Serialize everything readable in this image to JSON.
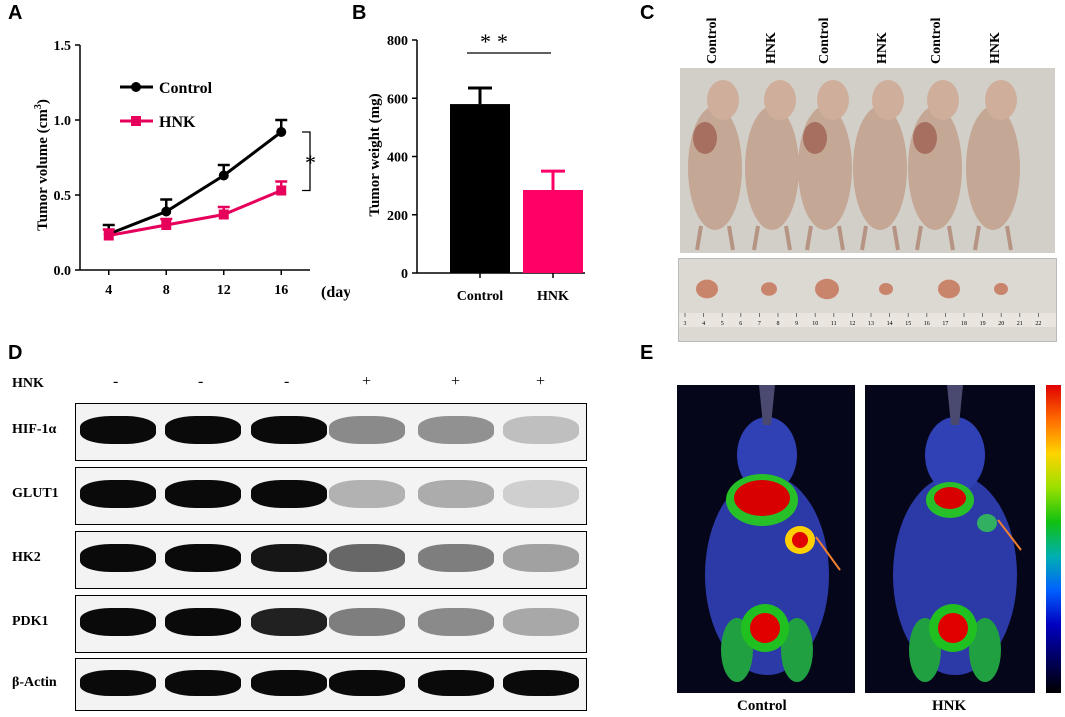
{
  "panels": {
    "A": "A",
    "B": "B",
    "C": "C",
    "D": "D",
    "E": "E"
  },
  "panelA": {
    "ylabel_main": "Tumor volume (cm",
    "ylabel_sup": "3",
    "ylabel_end": ")",
    "xunit": "(day)",
    "sig": "*",
    "xticks": [
      "4",
      "8",
      "12",
      "16"
    ],
    "yticks": [
      "0.0",
      "0.5",
      "1.0",
      "1.5"
    ]
  },
  "panelB": {
    "ylabel": "Tumor weight (mg)",
    "sig": "**",
    "yticks": [
      "0",
      "200",
      "400",
      "600",
      "800"
    ]
  },
  "panelC": {
    "labels": [
      "Control",
      "HNK",
      "Control",
      "HNK",
      "Control",
      "HNK"
    ],
    "ruler_numbers": [
      "3",
      "4",
      "5",
      "6",
      "7",
      "8",
      "9",
      "10",
      "11",
      "12",
      "13",
      "14",
      "15",
      "16",
      "17",
      "18",
      "19",
      "20",
      "21",
      "22"
    ]
  },
  "panelD": {
    "treatment_label": "HNK",
    "lane_signs": [
      "-",
      "-",
      "-",
      "+",
      "+",
      "+"
    ],
    "proteins": [
      "HIF-1α",
      "GLUT1",
      "HK2",
      "PDK1",
      "β-Actin"
    ]
  },
  "panelE": {
    "labels": [
      "Control",
      "HNK"
    ]
  },
  "chart_data": [
    {
      "type": "line",
      "x": [
        4,
        8,
        12,
        16
      ],
      "series": [
        {
          "name": "Control",
          "values": [
            0.24,
            0.39,
            0.63,
            0.92
          ],
          "errors": [
            0.06,
            0.08,
            0.07,
            0.08
          ],
          "color": "#000000"
        },
        {
          "name": "HNK",
          "values": [
            0.23,
            0.3,
            0.37,
            0.53
          ],
          "errors": [
            0.04,
            0.04,
            0.05,
            0.06
          ],
          "color": "#e6005c"
        }
      ],
      "xlabel": "(day)",
      "ylabel": "Tumor volume (cm3)",
      "ylim": [
        0,
        1.5
      ],
      "legend": "top-left"
    },
    {
      "type": "bar",
      "categories": [
        "Control",
        "HNK"
      ],
      "values": [
        580,
        285
      ],
      "errors": [
        55,
        65
      ],
      "colors": [
        "#000000",
        "#ff0066"
      ],
      "ylabel": "Tumor weight (mg)",
      "ylim": [
        0,
        800
      ]
    }
  ]
}
